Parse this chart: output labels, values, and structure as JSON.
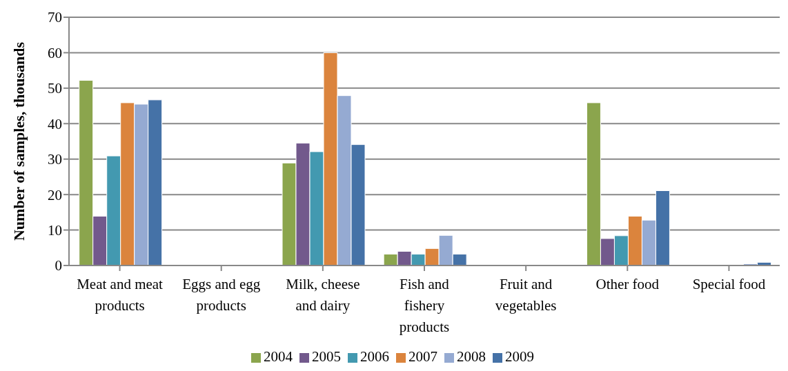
{
  "chart_data": {
    "type": "bar",
    "ylabel": "Number  of samples, thousands",
    "categories": [
      "Meat and meat products",
      "Eggs and egg products",
      "Milk, cheese and dairy",
      "Fish and fishery products",
      "Fruit and vegetables",
      "Other food",
      "Special food"
    ],
    "series": [
      {
        "name": "2004",
        "color": "#8ba54d",
        "values": [
          52.2,
          0,
          28.9,
          3.2,
          0,
          45.9,
          0
        ]
      },
      {
        "name": "2005",
        "color": "#72598c",
        "values": [
          13.9,
          0,
          34.5,
          4.0,
          0,
          7.6,
          0
        ]
      },
      {
        "name": "2006",
        "color": "#4399b0",
        "values": [
          30.9,
          0,
          32.1,
          3.2,
          0,
          8.4,
          0
        ]
      },
      {
        "name": "2007",
        "color": "#db843d",
        "values": [
          45.9,
          0,
          60,
          4.8,
          0,
          13.9,
          0
        ]
      },
      {
        "name": "2008",
        "color": "#95aad2",
        "values": [
          45.5,
          0,
          47.9,
          8.5,
          0,
          12.8,
          0.5
        ]
      },
      {
        "name": "2009",
        "color": "#4572a7",
        "values": [
          46.7,
          0,
          34.1,
          3.2,
          0,
          21.1,
          0.9
        ]
      }
    ],
    "ylim": [
      0,
      70
    ],
    "yticks": [
      0,
      10,
      20,
      30,
      40,
      50,
      60,
      70
    ],
    "grid": "y",
    "legend": "bottom"
  }
}
